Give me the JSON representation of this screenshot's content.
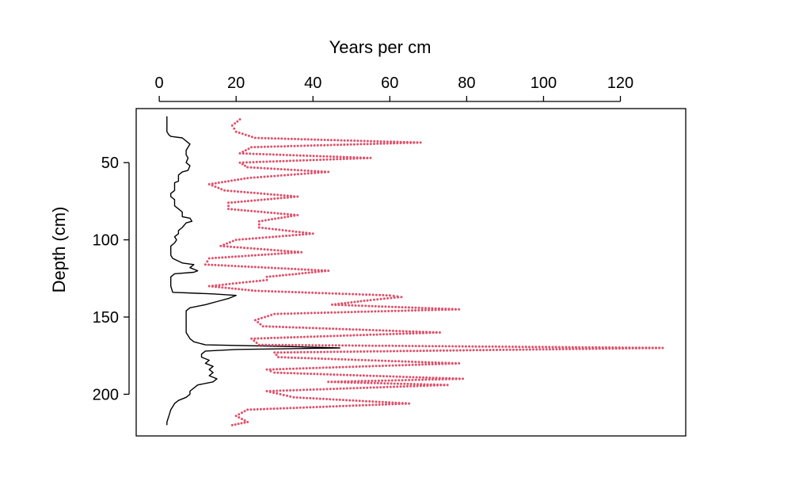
{
  "chart_data": {
    "type": "line",
    "title": "",
    "xlabel": "Years per cm",
    "ylabel": "Depth (cm)",
    "x_axis_position": "top",
    "y_axis_inverted": true,
    "xlim": [
      -6,
      137
    ],
    "ylim": [
      15,
      227
    ],
    "x_ticks": [
      0,
      20,
      40,
      60,
      80,
      100,
      120
    ],
    "y_ticks": [
      50,
      100,
      150,
      200
    ],
    "grid": false,
    "legend": "none",
    "series": [
      {
        "style": "line",
        "color": "#000000",
        "points": [
          [
            2,
            20
          ],
          [
            2,
            30
          ],
          [
            2.5,
            32
          ],
          [
            3,
            33
          ],
          [
            6,
            34
          ],
          [
            7,
            36
          ],
          [
            8,
            38
          ],
          [
            7,
            42
          ],
          [
            7,
            45
          ],
          [
            7.5,
            47
          ],
          [
            7,
            50
          ],
          [
            8,
            52
          ],
          [
            7.5,
            55
          ],
          [
            6,
            56
          ],
          [
            5,
            58
          ],
          [
            5,
            62
          ],
          [
            4,
            63
          ],
          [
            4,
            68
          ],
          [
            3,
            70
          ],
          [
            3,
            72
          ],
          [
            4,
            74
          ],
          [
            4,
            78
          ],
          [
            5,
            80
          ],
          [
            6,
            82
          ],
          [
            6,
            85
          ],
          [
            8,
            86
          ],
          [
            8.5,
            88
          ],
          [
            7,
            89
          ],
          [
            6,
            92
          ],
          [
            5,
            94
          ],
          [
            5,
            96
          ],
          [
            4,
            98
          ],
          [
            4.5,
            100
          ],
          [
            4,
            102
          ],
          [
            3,
            104
          ],
          [
            3,
            110
          ],
          [
            3.5,
            112
          ],
          [
            6,
            115
          ],
          [
            9,
            116
          ],
          [
            8,
            118
          ],
          [
            10,
            120
          ],
          [
            9,
            121
          ],
          [
            4,
            122
          ],
          [
            3,
            124
          ],
          [
            3,
            130
          ],
          [
            3.5,
            134
          ],
          [
            14,
            135
          ],
          [
            20,
            136
          ],
          [
            18,
            138
          ],
          [
            15,
            140
          ],
          [
            12,
            142
          ],
          [
            8,
            144
          ],
          [
            7,
            146
          ],
          [
            7,
            160
          ],
          [
            7.5,
            162
          ],
          [
            8,
            164
          ],
          [
            9,
            166
          ],
          [
            12,
            168
          ],
          [
            32,
            169
          ],
          [
            47,
            170
          ],
          [
            20,
            171
          ],
          [
            12,
            172
          ],
          [
            11,
            174
          ],
          [
            11,
            176
          ],
          [
            13,
            178
          ],
          [
            12,
            180
          ],
          [
            14,
            182
          ],
          [
            13,
            184
          ],
          [
            14,
            186
          ],
          [
            13,
            188
          ],
          [
            15,
            190
          ],
          [
            14,
            192
          ],
          [
            10,
            194
          ],
          [
            9,
            196
          ],
          [
            8,
            198
          ],
          [
            8,
            200
          ],
          [
            7,
            202
          ],
          [
            5,
            204
          ],
          [
            4,
            206
          ],
          [
            3,
            210
          ],
          [
            2.5,
            214
          ],
          [
            2,
            218
          ],
          [
            2,
            220
          ]
        ]
      },
      {
        "style": "dotted",
        "color": "#e0506a",
        "points": [
          [
            21,
            22
          ],
          [
            19,
            26
          ],
          [
            20,
            30
          ],
          [
            25,
            34
          ],
          [
            68,
            37
          ],
          [
            24,
            40
          ],
          [
            21,
            44
          ],
          [
            55,
            47
          ],
          [
            21,
            50
          ],
          [
            23,
            53
          ],
          [
            44,
            56
          ],
          [
            23,
            60
          ],
          [
            13,
            64
          ],
          [
            17,
            68
          ],
          [
            36,
            72
          ],
          [
            18,
            76
          ],
          [
            18,
            80
          ],
          [
            36,
            84
          ],
          [
            26,
            88
          ],
          [
            26,
            92
          ],
          [
            40,
            96
          ],
          [
            20,
            100
          ],
          [
            16,
            104
          ],
          [
            37,
            108
          ],
          [
            13,
            112
          ],
          [
            12,
            116
          ],
          [
            44,
            120
          ],
          [
            28,
            124
          ],
          [
            28,
            126
          ],
          [
            13,
            130
          ],
          [
            25,
            133
          ],
          [
            60,
            136
          ],
          [
            63,
            137
          ],
          [
            55,
            139
          ],
          [
            45,
            142
          ],
          [
            78,
            145
          ],
          [
            30,
            148
          ],
          [
            25,
            152
          ],
          [
            27,
            156
          ],
          [
            73,
            160
          ],
          [
            24,
            164
          ],
          [
            26,
            168
          ],
          [
            131,
            170
          ],
          [
            30,
            173
          ],
          [
            31,
            176
          ],
          [
            78,
            180
          ],
          [
            28,
            184
          ],
          [
            30,
            186
          ],
          [
            79,
            190
          ],
          [
            44,
            192
          ],
          [
            75,
            194
          ],
          [
            28,
            198
          ],
          [
            35,
            202
          ],
          [
            65,
            206
          ],
          [
            23,
            210
          ],
          [
            20,
            214
          ],
          [
            23,
            218
          ],
          [
            19,
            220
          ]
        ]
      }
    ]
  }
}
